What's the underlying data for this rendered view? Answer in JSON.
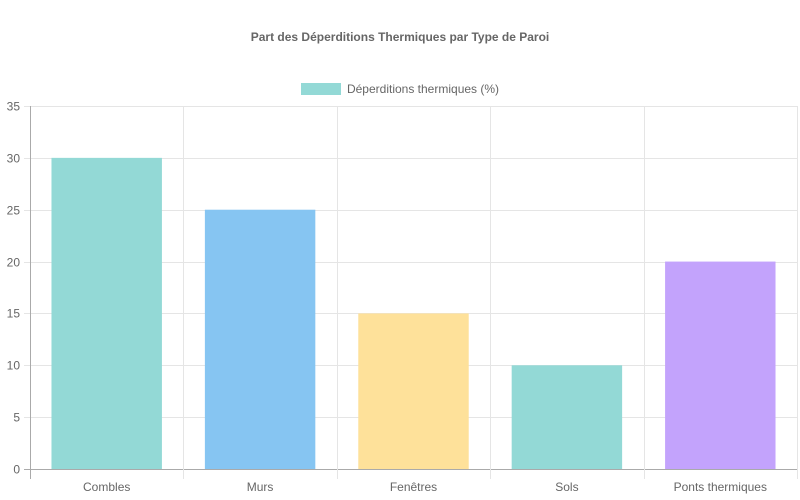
{
  "chart_data": {
    "type": "bar",
    "title": "Part des Déperditions Thermiques par Type de Paroi",
    "categories": [
      "Combles",
      "Murs",
      "Fenêtres",
      "Sols",
      "Ponts thermiques"
    ],
    "series": [
      {
        "name": "Déperditions thermiques (%)",
        "values": [
          30,
          25,
          15,
          10,
          20
        ],
        "colors": [
          "#93d9d6",
          "#86c5f2",
          "#fee19a",
          "#93d9d6",
          "#c3a3fc"
        ]
      }
    ],
    "legend": {
      "label": "Déperditions thermiques (%)",
      "color": "#93d9d6",
      "position": "top"
    },
    "xlabel": "",
    "ylabel": "",
    "ylim": [
      0,
      35
    ],
    "yticks": [
      0,
      5,
      10,
      15,
      20,
      25,
      30,
      35
    ],
    "grid": true
  }
}
